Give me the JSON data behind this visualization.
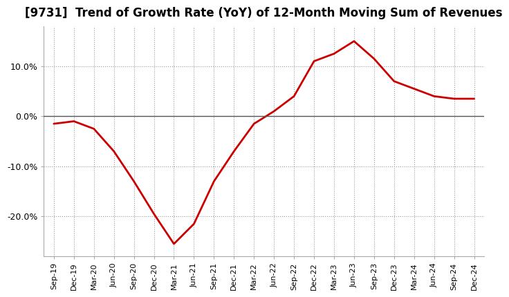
{
  "title": "[9731]  Trend of Growth Rate (YoY) of 12-Month Moving Sum of Revenues",
  "title_fontsize": 12,
  "line_color": "#cc0000",
  "line_width": 2.0,
  "background_color": "#ffffff",
  "plot_bg_color": "#ffffff",
  "grid_color": "#999999",
  "zero_line_color": "#555555",
  "x_labels": [
    "Sep-19",
    "Dec-19",
    "Mar-20",
    "Jun-20",
    "Sep-20",
    "Dec-20",
    "Mar-21",
    "Jun-21",
    "Sep-21",
    "Dec-21",
    "Mar-22",
    "Jun-22",
    "Sep-22",
    "Dec-22",
    "Mar-23",
    "Jun-23",
    "Sep-23",
    "Dec-23",
    "Mar-24",
    "Jun-24",
    "Sep-24",
    "Dec-24"
  ],
  "y_values": [
    -1.5,
    -1.0,
    -2.5,
    -7.0,
    -13.0,
    -19.5,
    -25.5,
    -21.5,
    -13.0,
    -7.0,
    -1.5,
    1.0,
    4.0,
    11.0,
    12.5,
    15.0,
    11.5,
    7.0,
    5.5,
    4.0,
    3.5,
    3.5
  ],
  "ylim": [
    -28,
    18
  ],
  "yticks": [
    -20.0,
    -10.0,
    0.0,
    10.0
  ],
  "ytick_labels": [
    "-20.0%",
    "-10.0%",
    "0.0%",
    "10.0%"
  ]
}
